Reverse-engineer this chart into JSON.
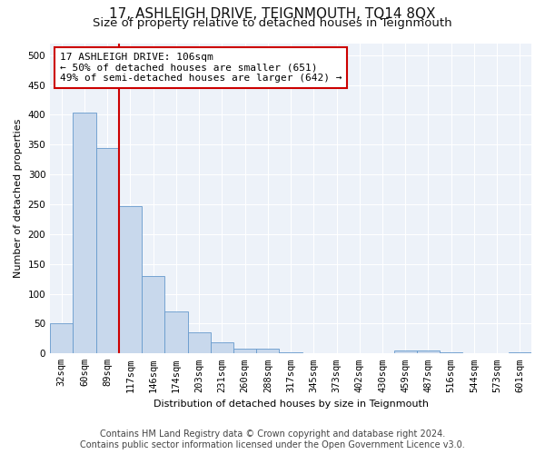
{
  "title": "17, ASHLEIGH DRIVE, TEIGNMOUTH, TQ14 8QX",
  "subtitle": "Size of property relative to detached houses in Teignmouth",
  "xlabel": "Distribution of detached houses by size in Teignmouth",
  "ylabel": "Number of detached properties",
  "bar_labels": [
    "32sqm",
    "60sqm",
    "89sqm",
    "117sqm",
    "146sqm",
    "174sqm",
    "203sqm",
    "231sqm",
    "260sqm",
    "288sqm",
    "317sqm",
    "345sqm",
    "373sqm",
    "402sqm",
    "430sqm",
    "459sqm",
    "487sqm",
    "516sqm",
    "544sqm",
    "573sqm",
    "601sqm"
  ],
  "bar_values": [
    50,
    403,
    345,
    247,
    130,
    70,
    35,
    18,
    8,
    8,
    2,
    1,
    1,
    1,
    1,
    5,
    5,
    2,
    1,
    1,
    2
  ],
  "bar_color": "#c8d8ec",
  "bar_edge_color": "#6699cc",
  "vline_color": "#cc0000",
  "annotation_text_line1": "17 ASHLEIGH DRIVE: 106sqm",
  "annotation_text_line2": "← 50% of detached houses are smaller (651)",
  "annotation_text_line3": "49% of semi-detached houses are larger (642) →",
  "annotation_box_color": "#cc0000",
  "ylim": [
    0,
    520
  ],
  "yticks": [
    0,
    50,
    100,
    150,
    200,
    250,
    300,
    350,
    400,
    450,
    500
  ],
  "footer_line1": "Contains HM Land Registry data © Crown copyright and database right 2024.",
  "footer_line2": "Contains public sector information licensed under the Open Government Licence v3.0.",
  "bg_color": "#edf2f9",
  "fig_bg_color": "#ffffff",
  "grid_color": "#ffffff",
  "title_fontsize": 11,
  "subtitle_fontsize": 9.5,
  "axis_label_fontsize": 8,
  "tick_fontsize": 7.5,
  "annotation_fontsize": 8,
  "footer_fontsize": 7
}
